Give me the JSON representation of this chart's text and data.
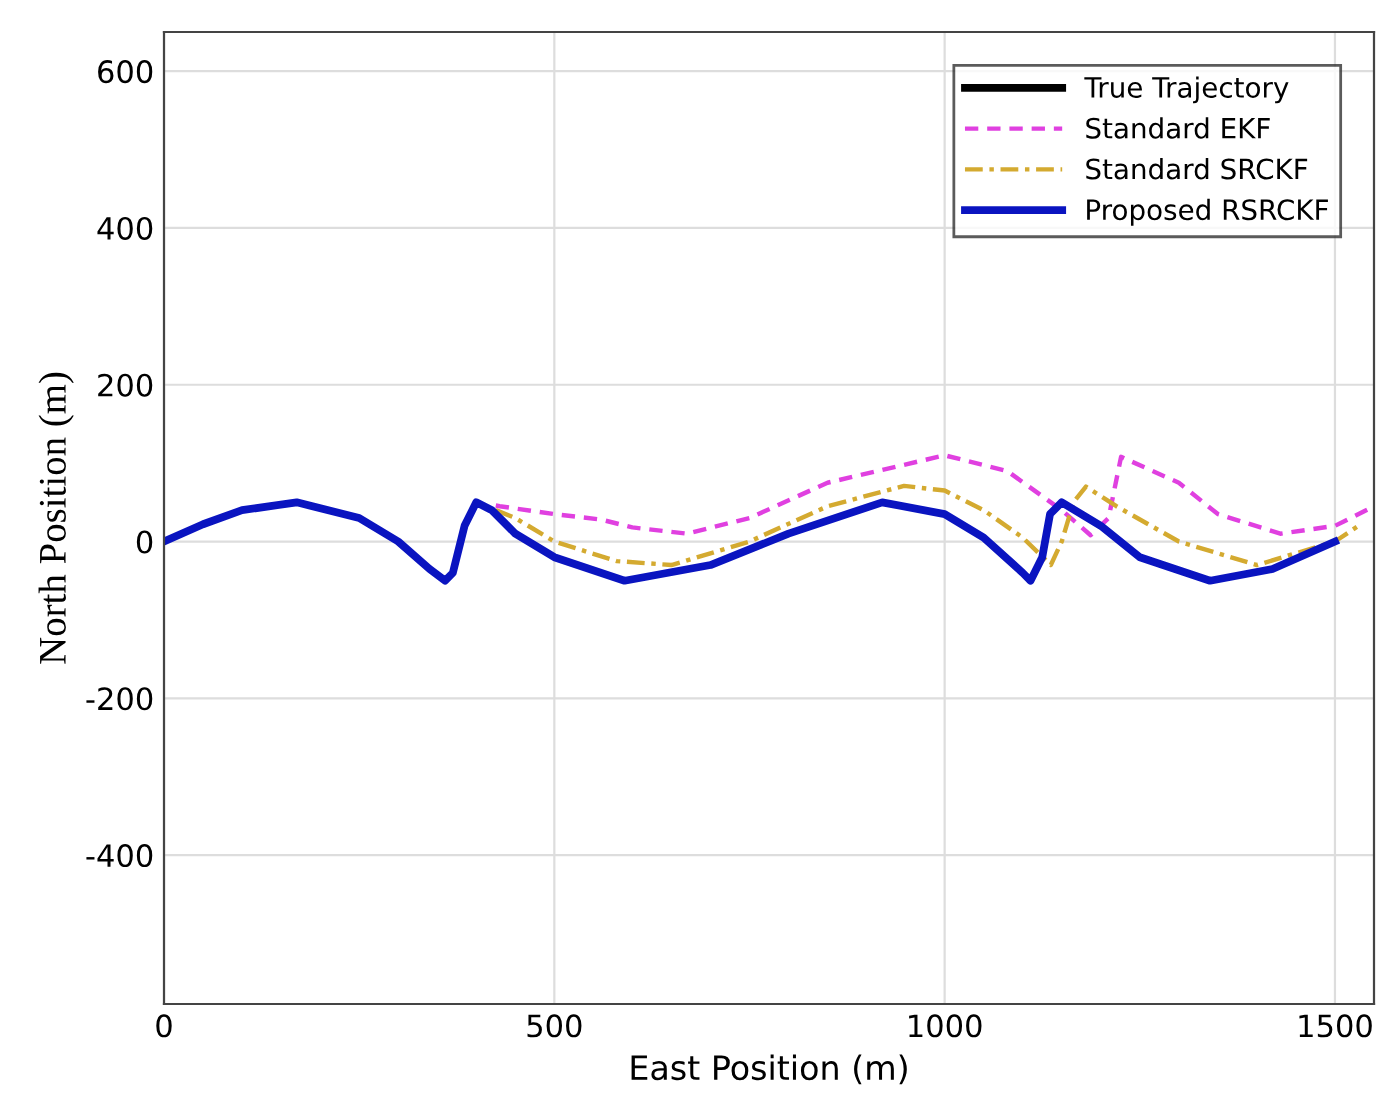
{
  "chart_data": {
    "type": "line",
    "xlabel": "East Position (m)",
    "ylabel": "North Position (m)",
    "xlim": [
      0,
      1550
    ],
    "ylim": [
      -590,
      650
    ],
    "xticks": [
      0,
      500,
      1000,
      1500
    ],
    "yticks": [
      -400,
      -200,
      0,
      200,
      400,
      600
    ],
    "grid": true,
    "legend": "top right",
    "series": [
      {
        "name": "True Trajectory",
        "color": "#000000",
        "line_style": "solid"
      },
      {
        "name": "Standard EKF",
        "color": "#e040e0",
        "line_style": "dashed",
        "x": [
          425,
          430,
          500,
          560,
          600,
          670,
          750,
          850,
          1000,
          1080,
          1150,
          1187,
          1210,
          1226,
          1300,
          1350,
          1430,
          1500,
          1550
        ],
        "values": [
          46,
          45,
          35,
          28,
          18,
          10,
          30,
          75,
          110,
          90,
          40,
          8,
          30,
          108,
          75,
          35,
          10,
          20,
          45
        ]
      },
      {
        "name": "Standard SRCKF",
        "color": "#d4aa30",
        "line_style": "dashdot",
        "x": [
          425,
          450,
          500,
          580,
          650,
          750,
          850,
          948,
          1000,
          1050,
          1100,
          1136,
          1150,
          1165,
          1181,
          1220,
          1300,
          1400,
          1500,
          1530
        ],
        "values": [
          40,
          30,
          0,
          -25,
          -30,
          0,
          45,
          71,
          65,
          40,
          5,
          -30,
          0,
          50,
          70,
          45,
          0,
          -30,
          0,
          20
        ]
      },
      {
        "name": "Proposed RSRCKF",
        "color": "#0a14c0",
        "line_style": "solid",
        "x": [
          0,
          50,
          100,
          170,
          250,
          300,
          340,
          360,
          370,
          385,
          400,
          420,
          450,
          500,
          590,
          700,
          800,
          920,
          1000,
          1050,
          1100,
          1110,
          1125,
          1135,
          1150,
          1200,
          1250,
          1340,
          1420,
          1500
        ],
        "values": [
          0,
          22,
          40,
          50,
          30,
          0,
          -35,
          -50,
          -40,
          20,
          50,
          40,
          10,
          -20,
          -50,
          -30,
          10,
          50,
          35,
          5,
          -40,
          -50,
          -20,
          35,
          50,
          20,
          -20,
          -50,
          -35,
          0
        ]
      }
    ]
  }
}
